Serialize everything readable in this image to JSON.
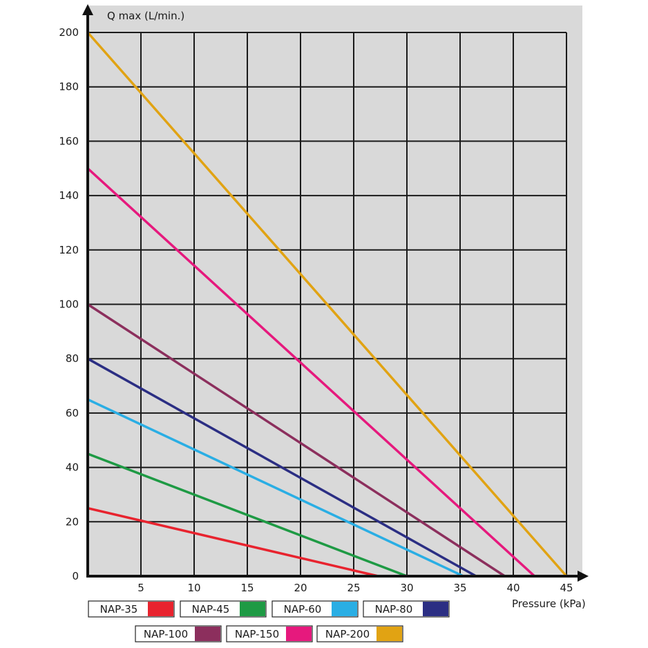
{
  "chart_data": {
    "type": "line",
    "title": "",
    "xlabel": "Pressure (kPa)",
    "ylabel": "Q max (L/min.)",
    "xlim": [
      0,
      45
    ],
    "ylim": [
      0,
      200
    ],
    "x_ticks": [
      5,
      10,
      15,
      20,
      25,
      30,
      35,
      40,
      45
    ],
    "y_ticks": [
      0,
      20,
      40,
      60,
      80,
      100,
      120,
      140,
      160,
      180,
      200
    ],
    "grid": true,
    "legend_position": "bottom",
    "background_color": "#d9d9d9",
    "series": [
      {
        "name": "NAP-35",
        "color": "#e8232e",
        "points": [
          [
            0,
            25
          ],
          [
            27.3,
            0
          ]
        ]
      },
      {
        "name": "NAP-45",
        "color": "#1e9a44",
        "points": [
          [
            0,
            45
          ],
          [
            30,
            0
          ]
        ]
      },
      {
        "name": "NAP-60",
        "color": "#2aaee4",
        "points": [
          [
            0,
            65
          ],
          [
            35.3,
            0
          ]
        ]
      },
      {
        "name": "NAP-80",
        "color": "#2b2e83",
        "points": [
          [
            0,
            80
          ],
          [
            36.5,
            0
          ]
        ]
      },
      {
        "name": "NAP-100",
        "color": "#8c2f5d",
        "points": [
          [
            0,
            100
          ],
          [
            39.2,
            0
          ]
        ]
      },
      {
        "name": "NAP-150",
        "color": "#e6197d",
        "points": [
          [
            0,
            150
          ],
          [
            42,
            0
          ]
        ]
      },
      {
        "name": "NAP-200",
        "color": "#e1a313",
        "points": [
          [
            0,
            200
          ],
          [
            45,
            0
          ]
        ]
      }
    ]
  }
}
